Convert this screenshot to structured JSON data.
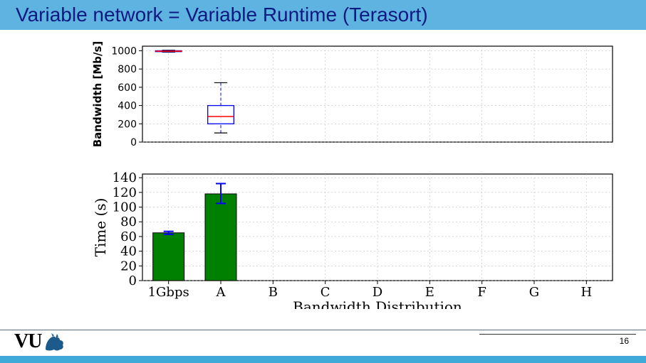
{
  "title": "Variable network = Variable Runtime (Terasort)",
  "title_bg": "#5fb3e0",
  "title_color": "#0d1a80",
  "page_number": "16",
  "logo_text": "VU",
  "footer_blue": "#3fa9d8",
  "top_chart": {
    "type": "boxplot",
    "ylabel": "Bandwidth [Mb/s]",
    "ylim": [
      0,
      1050
    ],
    "yticks": [
      0,
      200,
      400,
      600,
      800,
      1000
    ],
    "ytick_labels": [
      "0",
      "200",
      "400",
      "600",
      "800",
      "1000"
    ],
    "categories": [
      "1Gbps",
      "A",
      "B",
      "C",
      "D",
      "E",
      "F",
      "G",
      "H"
    ],
    "visible_categories": [
      "1Gbps",
      "A"
    ],
    "grid_color": "#b0b0b0",
    "axis_color": "#000000",
    "box_color": "#0000ff",
    "median_color": "#ff0000",
    "whisker_color": "#0000ff",
    "background": "#ffffff",
    "boxes": {
      "1Gbps": {
        "q1": 990,
        "median": 995,
        "q3": 1000,
        "whisker_lo": 985,
        "whisker_hi": 1005
      },
      "A": {
        "q1": 200,
        "median": 280,
        "q3": 400,
        "whisker_lo": 100,
        "whisker_hi": 650
      }
    }
  },
  "bottom_chart": {
    "type": "bar",
    "ylabel": "Time (s)",
    "xlabel": "Bandwidth Distribution",
    "ylim": [
      0,
      145
    ],
    "yticks": [
      0,
      20,
      40,
      60,
      80,
      100,
      120,
      140
    ],
    "ytick_labels": [
      "0",
      "20",
      "40",
      "60",
      "80",
      "100",
      "120",
      "140"
    ],
    "categories": [
      "1Gbps",
      "A",
      "B",
      "C",
      "D",
      "E",
      "F",
      "G",
      "H"
    ],
    "bar_color": "#008000",
    "bar_edge": "#000000",
    "error_color": "#0000ff",
    "grid_color": "#b0b0b0",
    "axis_color": "#000000",
    "background": "#ffffff",
    "bars": {
      "1Gbps": {
        "value": 65,
        "err_lo": 63,
        "err_hi": 67
      },
      "A": {
        "value": 118,
        "err_lo": 105,
        "err_hi": 132
      }
    },
    "label_fontsize": 18,
    "tick_fontsize": 18
  }
}
